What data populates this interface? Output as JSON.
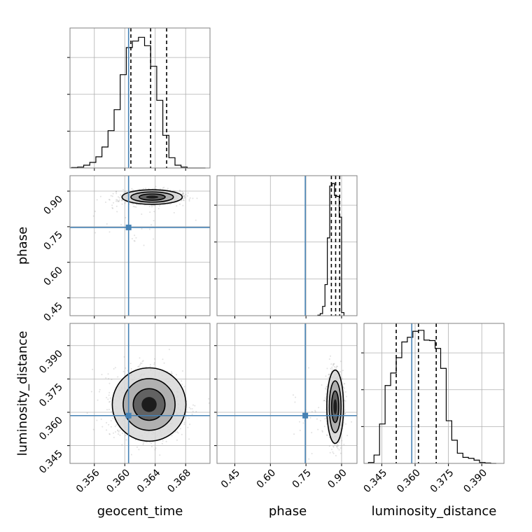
{
  "colors": {
    "truth": "#4682b4",
    "line": "#000000",
    "grid": "#b0b0b0",
    "cloud": "#888888"
  },
  "chart_data": {
    "type": "corner",
    "parameters": [
      "geocent_time",
      "phase",
      "luminosity_distance"
    ],
    "axis_titles": {
      "geocent_time": "geocent_time",
      "phase": "phase",
      "luminosity_distance": "luminosity_distance"
    },
    "ranges": {
      "geocent_time": [
        0.3528,
        0.3712
      ],
      "phase": [
        0.375,
        0.965
      ],
      "luminosity_distance": [
        0.337,
        0.4
      ]
    },
    "ticks": {
      "geocent_time": [
        0.356,
        0.36,
        0.364,
        0.368
      ],
      "phase": [
        0.45,
        0.6,
        0.75,
        0.9
      ],
      "luminosity_distance": [
        0.345,
        0.36,
        0.375,
        0.39
      ]
    },
    "tick_labels": {
      "geocent_time": [
        "0.356",
        "0.360",
        "0.364",
        "0.368"
      ],
      "phase": [
        "0.45",
        "0.60",
        "0.75",
        "0.90"
      ],
      "luminosity_distance": [
        "0.345",
        "0.360",
        "0.375",
        "0.390"
      ]
    },
    "truths": {
      "geocent_time": 0.3605,
      "phase": 0.747,
      "luminosity_distance": 0.3585
    },
    "quantiles": {
      "geocent_time": [
        0.3608,
        0.3634,
        0.3655
      ],
      "phase": [
        0.857,
        0.875,
        0.892
      ],
      "luminosity_distance": [
        0.3515,
        0.3615,
        0.3695
      ]
    },
    "histograms": {
      "geocent_time": {
        "edges": [
          0.353,
          0.3538,
          0.3546,
          0.3554,
          0.3562,
          0.357,
          0.3578,
          0.3586,
          0.3594,
          0.3602,
          0.361,
          0.3618,
          0.3626,
          0.3634,
          0.3642,
          0.365,
          0.3658,
          0.3666,
          0.3674,
          0.3682,
          0.369,
          0.3698,
          0.3706
        ],
        "counts": [
          1,
          2,
          6,
          12,
          24,
          45,
          80,
          125,
          200,
          258,
          272,
          280,
          262,
          218,
          145,
          70,
          22,
          6,
          2,
          0,
          0,
          0
        ],
        "max": 300
      },
      "phase": {
        "edges": [
          0.8,
          0.81,
          0.82,
          0.83,
          0.84,
          0.85,
          0.86,
          0.87,
          0.88,
          0.89,
          0.9,
          0.91
        ],
        "counts": [
          1,
          4,
          18,
          60,
          150,
          250,
          255,
          232,
          230,
          190,
          6
        ],
        "max": 270
      },
      "luminosity_distance": {
        "edges": [
          0.339,
          0.3415,
          0.344,
          0.3465,
          0.349,
          0.3515,
          0.354,
          0.3565,
          0.359,
          0.3615,
          0.364,
          0.3665,
          0.369,
          0.3715,
          0.374,
          0.3765,
          0.379,
          0.3815,
          0.384,
          0.3865,
          0.389,
          0.3915,
          0.394,
          0.3965
        ],
        "counts": [
          2,
          18,
          85,
          168,
          195,
          228,
          262,
          272,
          285,
          287,
          266,
          265,
          248,
          205,
          92,
          50,
          22,
          13,
          11,
          7,
          2,
          1,
          0
        ],
        "max": 302
      }
    },
    "samples_2d": {
      "geocent_time_vs_phase": {
        "center": [
          0.3636,
          0.875
        ],
        "spread": [
          0.0018,
          0.014
        ],
        "n": 1400
      },
      "geocent_time_vs_luminosity_distance": {
        "center": [
          0.3632,
          0.3635
        ],
        "spread": [
          0.0022,
          0.0075
        ],
        "n": 1500
      },
      "phase_vs_luminosity_distance": {
        "center": [
          0.873,
          0.3625
        ],
        "spread": [
          0.016,
          0.0075
        ],
        "n": 1300
      }
    },
    "contour_levels": [
      0.39,
      0.86,
      0.99
    ],
    "grid": true
  }
}
